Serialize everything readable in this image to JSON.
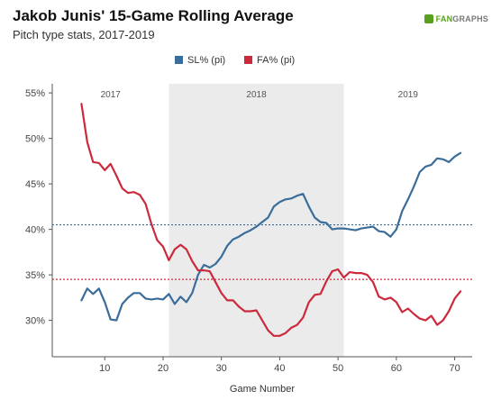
{
  "header": {
    "title": "Jakob Junis' 15-Game Rolling Average",
    "subtitle": "Pitch type stats, 2017-2019"
  },
  "brand": {
    "prefix": "FAN",
    "suffix": "GRAPHS",
    "color": "#5aa01e"
  },
  "chart_data": {
    "type": "line",
    "title": "Jakob Junis' 15-Game Rolling Average",
    "subtitle": "Pitch type stats, 2017-2019",
    "xlabel": "Game Number",
    "ylabel": "",
    "xlim": [
      1,
      73
    ],
    "ylim": [
      26,
      56
    ],
    "x_ticks": [
      10,
      20,
      30,
      40,
      50,
      60,
      70
    ],
    "y_ticks": [
      30,
      35,
      40,
      45,
      50,
      55
    ],
    "y_tick_format": "percent",
    "legend_position": "top-center",
    "seasons": [
      {
        "label": "2017",
        "from": 1,
        "to": 21,
        "shaded": false
      },
      {
        "label": "2018",
        "from": 21,
        "to": 51,
        "shaded": true
      },
      {
        "label": "2019",
        "from": 51,
        "to": 73,
        "shaded": false
      }
    ],
    "series": [
      {
        "name": "SL% (pi)",
        "color": "#3a6d9a",
        "average": 40.5,
        "x": [
          6,
          7,
          8,
          9,
          10,
          11,
          12,
          13,
          14,
          15,
          16,
          17,
          18,
          19,
          20,
          21,
          22,
          23,
          24,
          25,
          26,
          27,
          28,
          29,
          30,
          31,
          32,
          33,
          34,
          35,
          36,
          37,
          38,
          39,
          40,
          41,
          42,
          43,
          44,
          45,
          46,
          47,
          48,
          49,
          50,
          51,
          52,
          53,
          54,
          55,
          56,
          57,
          58,
          59,
          60,
          61,
          62,
          63,
          64,
          65,
          66,
          67,
          68,
          69,
          70,
          71
        ],
        "y": [
          32.2,
          33.5,
          32.9,
          33.5,
          32.0,
          30.1,
          30.0,
          31.8,
          32.5,
          33.0,
          33.0,
          32.4,
          32.3,
          32.4,
          32.3,
          32.9,
          31.8,
          32.6,
          32.0,
          33.0,
          35.0,
          36.1,
          35.8,
          36.2,
          37.0,
          38.2,
          38.9,
          39.2,
          39.6,
          39.9,
          40.3,
          40.8,
          41.3,
          42.5,
          43.0,
          43.3,
          43.4,
          43.7,
          43.9,
          42.5,
          41.3,
          40.8,
          40.7,
          40.0,
          40.1,
          40.1,
          40.0,
          39.9,
          40.1,
          40.2,
          40.3,
          39.8,
          39.7,
          39.2,
          40.0,
          42.0,
          43.3,
          44.7,
          46.3,
          46.9,
          47.1,
          47.8,
          47.7,
          47.4,
          48.0,
          48.4
        ]
      },
      {
        "name": "FA% (pi)",
        "color": "#cc2a3c",
        "average": 34.5,
        "x": [
          6,
          7,
          8,
          9,
          10,
          11,
          12,
          13,
          14,
          15,
          16,
          17,
          18,
          19,
          20,
          21,
          22,
          23,
          24,
          25,
          26,
          27,
          28,
          29,
          30,
          31,
          32,
          33,
          34,
          35,
          36,
          37,
          38,
          39,
          40,
          41,
          42,
          43,
          44,
          45,
          46,
          47,
          48,
          49,
          50,
          51,
          52,
          53,
          54,
          55,
          56,
          57,
          58,
          59,
          60,
          61,
          62,
          63,
          64,
          65,
          66,
          67,
          68,
          69,
          70,
          71
        ],
        "y": [
          53.8,
          49.6,
          47.4,
          47.3,
          46.5,
          47.2,
          45.9,
          44.5,
          44.0,
          44.1,
          43.8,
          42.8,
          40.6,
          38.8,
          38.1,
          36.6,
          37.8,
          38.3,
          37.8,
          36.5,
          35.5,
          35.5,
          35.4,
          34.2,
          33.0,
          32.2,
          32.2,
          31.5,
          31.0,
          31.0,
          31.1,
          30.0,
          28.9,
          28.3,
          28.3,
          28.6,
          29.2,
          29.5,
          30.3,
          32.0,
          32.8,
          32.9,
          34.3,
          35.4,
          35.6,
          34.7,
          35.3,
          35.2,
          35.2,
          35.0,
          34.2,
          32.6,
          32.3,
          32.5,
          32.0,
          30.9,
          31.3,
          30.7,
          30.2,
          30.0,
          30.5,
          29.5,
          30.0,
          31.0,
          32.4,
          33.2
        ]
      }
    ]
  }
}
